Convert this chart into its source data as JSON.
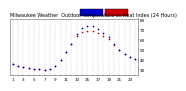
{
  "title": "Milwaukee Weather  Outdoor Temperature vs Heat Index (24 Hours)",
  "background_color": "#ffffff",
  "grid_color": "#999999",
  "hours": [
    0,
    1,
    2,
    3,
    4,
    5,
    6,
    7,
    8,
    9,
    10,
    11,
    12,
    13,
    14,
    15,
    16,
    17,
    18,
    19,
    20,
    21,
    22,
    23
  ],
  "temp": [
    36,
    34,
    33,
    32,
    31,
    31,
    30,
    31,
    34,
    40,
    48,
    56,
    63,
    67,
    68,
    68,
    66,
    63,
    60,
    55,
    50,
    46,
    43,
    41
  ],
  "heat_index": [
    36,
    34,
    33,
    32,
    31,
    31,
    30,
    31,
    34,
    40,
    48,
    56,
    65,
    71,
    73,
    73,
    70,
    66,
    62,
    56,
    50,
    46,
    43,
    41
  ],
  "temp_color": "#cc0000",
  "heat_color": "#0000cc",
  "ylim": [
    25,
    80
  ],
  "ytick_vals": [
    30,
    40,
    50,
    60,
    70,
    80
  ],
  "ytick_labels": [
    "30",
    "40",
    "50",
    "60",
    "70",
    "80"
  ],
  "dot_size": 1.5,
  "legend_blue_color": "#0000cc",
  "legend_red_color": "#cc0000",
  "title_fontsize": 3.5,
  "tick_fontsize": 3.0
}
